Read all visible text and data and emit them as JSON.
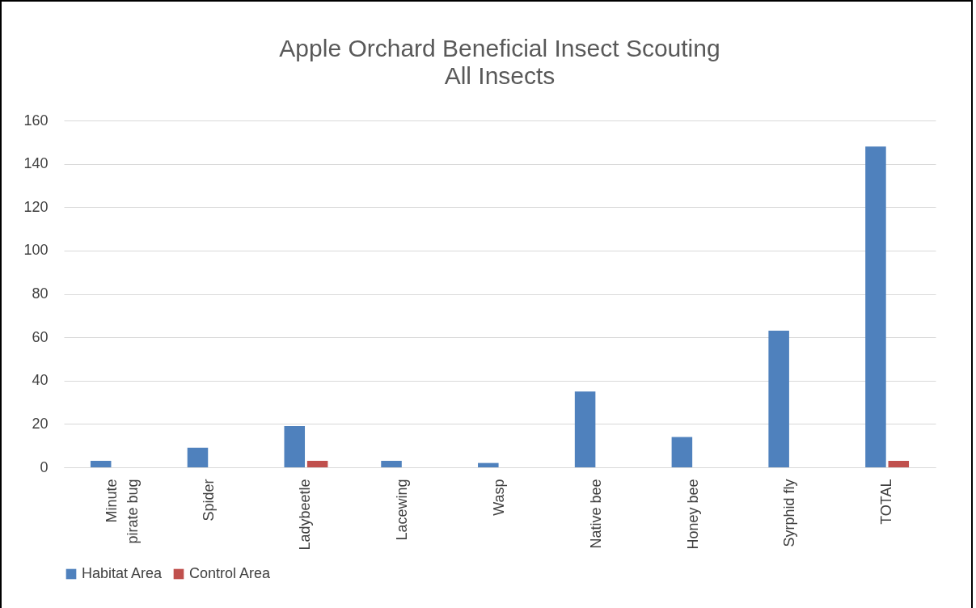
{
  "chart_data": {
    "type": "bar",
    "title": "Apple Orchard Beneficial Insect Scouting",
    "subtitle": "All Insects",
    "categories": [
      "Minute pirate bug",
      "Spider",
      "Ladybeetle",
      "Lacewing",
      "Wasp",
      "Native bee",
      "Honey bee",
      "Syrphid fly",
      "TOTAL"
    ],
    "series": [
      {
        "name": "Habitat Area",
        "color": "#4f81bd",
        "values": [
          3,
          9,
          19,
          3,
          2,
          35,
          14,
          63,
          148
        ]
      },
      {
        "name": "Control Area",
        "color": "#c0504d",
        "values": [
          0,
          0,
          3,
          0,
          0,
          0,
          0,
          0,
          3
        ]
      }
    ],
    "ylim": [
      0,
      160
    ],
    "yticks": [
      0,
      20,
      40,
      60,
      80,
      100,
      120,
      140,
      160
    ],
    "grid": "y",
    "legend": "bottom"
  }
}
